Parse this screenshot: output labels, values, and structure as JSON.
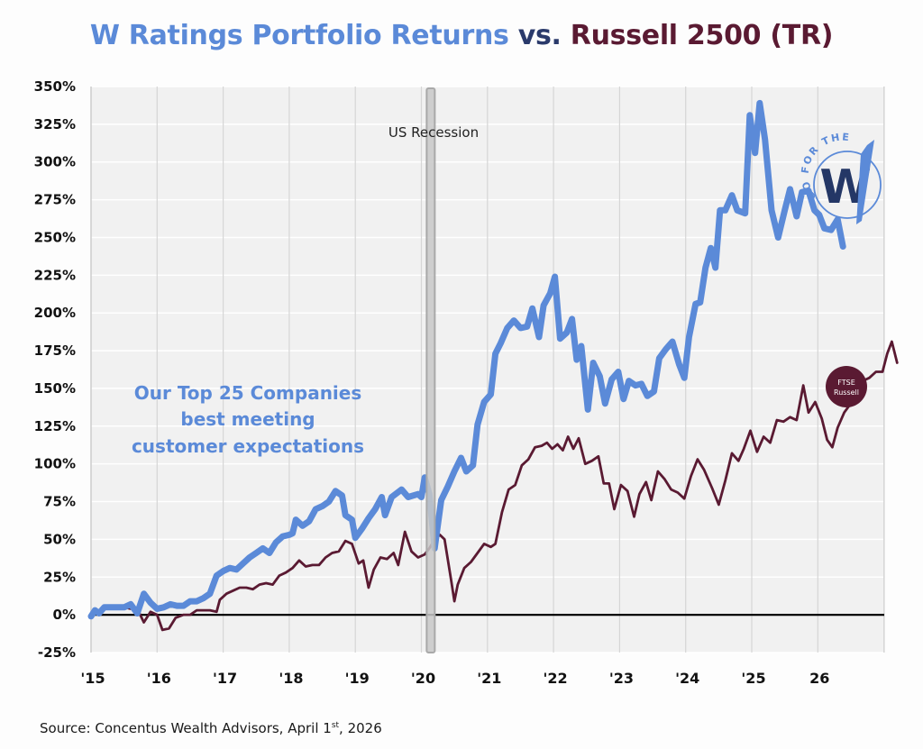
{
  "title": {
    "part1": "W Ratings Portfolio Returns",
    "part2": "vs.",
    "part3": "Russell 2500 (TR)",
    "colors": {
      "part1": "#5b8ad8",
      "part2": "#2a3a6b",
      "part3": "#5a1a32"
    }
  },
  "source": {
    "prefix": "Source: Concentus Wealth Advisors, April 1",
    "superscript": "st",
    "suffix": ", 2026"
  },
  "logos": {
    "w_badge": {
      "ring_text": "GO FOR THE",
      "letter": "W",
      "colors": {
        "ring": "#5b8ad8",
        "letter": "#243766"
      }
    },
    "ftse_badge": {
      "line1": "FTSE",
      "line2": "Russell",
      "color": "#5a1a32"
    }
  },
  "chart_data": {
    "type": "line",
    "title": "W Ratings Portfolio Returns vs. Russell 2500 (TR)",
    "xlabel": "",
    "ylabel": "",
    "x_range": [
      2015,
      2027
    ],
    "ylim": [
      -25,
      350
    ],
    "y_ticks": [
      -25,
      0,
      25,
      50,
      75,
      100,
      125,
      150,
      175,
      200,
      225,
      250,
      275,
      300,
      325,
      350
    ],
    "y_tick_labels": [
      "-25%",
      "0%",
      "25%",
      "50%",
      "75%",
      "100%",
      "125%",
      "150%",
      "175%",
      "200%",
      "225%",
      "250%",
      "275%",
      "300%",
      "325%",
      "350%"
    ],
    "x_ticks": [
      2015,
      2016,
      2017,
      2018,
      2019,
      2020,
      2021,
      2022,
      2023,
      2024,
      2025,
      2026
    ],
    "x_tick_labels": [
      "'15",
      "'16",
      "'17",
      "'18",
      "'19",
      "'20",
      "'21",
      "'22",
      "'23",
      "'24",
      "'25",
      "26"
    ],
    "grid": true,
    "zero_line": true,
    "annotations": [
      {
        "text_lines": [
          "Our Top 25 Companies",
          "best meeting",
          "customer expectations"
        ],
        "color": "#5b8ad8",
        "anchor_x": 2017.25,
        "anchor_y": 142
      },
      {
        "text": "US Recession",
        "anchor_x": 2020.1,
        "anchor_y": 318
      }
    ],
    "shaded_regions": [
      {
        "label": "US Recession",
        "x_start": 2020.08,
        "x_end": 2020.2
      }
    ],
    "series": [
      {
        "name": "W Ratings Portfolio",
        "color": "#5b8ad8",
        "points": [
          [
            2015.0,
            -1
          ],
          [
            2015.06,
            3
          ],
          [
            2015.12,
            1
          ],
          [
            2015.2,
            5
          ],
          [
            2015.3,
            5
          ],
          [
            2015.4,
            5
          ],
          [
            2015.5,
            5
          ],
          [
            2015.6,
            7
          ],
          [
            2015.7,
            1
          ],
          [
            2015.8,
            14
          ],
          [
            2015.9,
            8
          ],
          [
            2016.0,
            4
          ],
          [
            2016.1,
            5
          ],
          [
            2016.2,
            7
          ],
          [
            2016.3,
            6
          ],
          [
            2016.4,
            6
          ],
          [
            2016.5,
            9
          ],
          [
            2016.6,
            9
          ],
          [
            2016.7,
            11
          ],
          [
            2016.8,
            14
          ],
          [
            2016.9,
            26
          ],
          [
            2017.0,
            29
          ],
          [
            2017.1,
            31
          ],
          [
            2017.2,
            30
          ],
          [
            2017.3,
            34
          ],
          [
            2017.4,
            38
          ],
          [
            2017.5,
            41
          ],
          [
            2017.6,
            44
          ],
          [
            2017.7,
            41
          ],
          [
            2017.8,
            48
          ],
          [
            2017.9,
            52
          ],
          [
            2018.0,
            53
          ],
          [
            2018.05,
            54
          ],
          [
            2018.1,
            63
          ],
          [
            2018.2,
            59
          ],
          [
            2018.3,
            62
          ],
          [
            2018.4,
            70
          ],
          [
            2018.5,
            72
          ],
          [
            2018.6,
            75
          ],
          [
            2018.7,
            82
          ],
          [
            2018.8,
            79
          ],
          [
            2018.85,
            66
          ],
          [
            2018.95,
            63
          ],
          [
            2019.0,
            51
          ],
          [
            2019.1,
            57
          ],
          [
            2019.2,
            64
          ],
          [
            2019.3,
            70
          ],
          [
            2019.4,
            78
          ],
          [
            2019.45,
            66
          ],
          [
            2019.55,
            78
          ],
          [
            2019.7,
            83
          ],
          [
            2019.8,
            78
          ],
          [
            2019.95,
            80
          ],
          [
            2020.0,
            78
          ],
          [
            2020.05,
            91
          ],
          [
            2020.12,
            80
          ],
          [
            2020.2,
            44
          ],
          [
            2020.3,
            76
          ],
          [
            2020.4,
            85
          ],
          [
            2020.5,
            95
          ],
          [
            2020.6,
            104
          ],
          [
            2020.68,
            95
          ],
          [
            2020.78,
            99
          ],
          [
            2020.85,
            126
          ],
          [
            2020.95,
            141
          ],
          [
            2021.05,
            146
          ],
          [
            2021.12,
            173
          ],
          [
            2021.2,
            180
          ],
          [
            2021.3,
            190
          ],
          [
            2021.4,
            195
          ],
          [
            2021.5,
            190
          ],
          [
            2021.6,
            191
          ],
          [
            2021.68,
            203
          ],
          [
            2021.78,
            184
          ],
          [
            2021.85,
            205
          ],
          [
            2021.95,
            213
          ],
          [
            2022.02,
            224
          ],
          [
            2022.1,
            183
          ],
          [
            2022.2,
            187
          ],
          [
            2022.28,
            196
          ],
          [
            2022.35,
            169
          ],
          [
            2022.42,
            178
          ],
          [
            2022.52,
            136
          ],
          [
            2022.6,
            167
          ],
          [
            2022.7,
            158
          ],
          [
            2022.78,
            140
          ],
          [
            2022.88,
            156
          ],
          [
            2022.98,
            161
          ],
          [
            2023.06,
            143
          ],
          [
            2023.14,
            155
          ],
          [
            2023.24,
            152
          ],
          [
            2023.33,
            153
          ],
          [
            2023.42,
            145
          ],
          [
            2023.52,
            148
          ],
          [
            2023.6,
            170
          ],
          [
            2023.7,
            176
          ],
          [
            2023.8,
            181
          ],
          [
            2023.9,
            166
          ],
          [
            2023.98,
            157
          ],
          [
            2024.05,
            184
          ],
          [
            2024.15,
            206
          ],
          [
            2024.22,
            207
          ],
          [
            2024.3,
            230
          ],
          [
            2024.38,
            243
          ],
          [
            2024.45,
            230
          ],
          [
            2024.52,
            268
          ],
          [
            2024.6,
            268
          ],
          [
            2024.7,
            278
          ],
          [
            2024.78,
            268
          ],
          [
            2024.9,
            266
          ],
          [
            2024.97,
            331
          ],
          [
            2025.05,
            306
          ],
          [
            2025.12,
            339
          ],
          [
            2025.2,
            315
          ],
          [
            2025.3,
            268
          ],
          [
            2025.4,
            250
          ],
          [
            2025.5,
            268
          ],
          [
            2025.58,
            282
          ],
          [
            2025.68,
            264
          ],
          [
            2025.76,
            280
          ],
          [
            2025.86,
            281
          ],
          [
            2025.95,
            268
          ],
          [
            2026.02,
            265
          ],
          [
            2026.1,
            256
          ],
          [
            2026.2,
            255
          ],
          [
            2026.3,
            262
          ],
          [
            2026.38,
            244
          ]
        ]
      },
      {
        "name": "Russell 2500 (TR)",
        "color": "#5a1a32",
        "points": [
          [
            2015.0,
            -1
          ],
          [
            2015.06,
            2
          ],
          [
            2015.15,
            1
          ],
          [
            2015.25,
            6
          ],
          [
            2015.4,
            5
          ],
          [
            2015.5,
            5
          ],
          [
            2015.6,
            4
          ],
          [
            2015.7,
            4
          ],
          [
            2015.8,
            -5
          ],
          [
            2015.9,
            2
          ],
          [
            2016.0,
            0
          ],
          [
            2016.08,
            -10
          ],
          [
            2016.18,
            -9
          ],
          [
            2016.28,
            -2
          ],
          [
            2016.4,
            0
          ],
          [
            2016.5,
            0
          ],
          [
            2016.6,
            3
          ],
          [
            2016.7,
            3
          ],
          [
            2016.8,
            3
          ],
          [
            2016.9,
            2
          ],
          [
            2016.95,
            10
          ],
          [
            2017.05,
            14
          ],
          [
            2017.15,
            16
          ],
          [
            2017.25,
            18
          ],
          [
            2017.35,
            18
          ],
          [
            2017.45,
            17
          ],
          [
            2017.55,
            20
          ],
          [
            2017.65,
            21
          ],
          [
            2017.75,
            20
          ],
          [
            2017.85,
            26
          ],
          [
            2017.95,
            28
          ],
          [
            2018.05,
            31
          ],
          [
            2018.15,
            36
          ],
          [
            2018.25,
            32
          ],
          [
            2018.35,
            33
          ],
          [
            2018.45,
            33
          ],
          [
            2018.55,
            38
          ],
          [
            2018.65,
            41
          ],
          [
            2018.75,
            42
          ],
          [
            2018.85,
            49
          ],
          [
            2018.95,
            47
          ],
          [
            2019.05,
            34
          ],
          [
            2019.12,
            36
          ],
          [
            2019.2,
            18
          ],
          [
            2019.28,
            30
          ],
          [
            2019.38,
            38
          ],
          [
            2019.48,
            37
          ],
          [
            2019.58,
            41
          ],
          [
            2019.65,
            33
          ],
          [
            2019.75,
            55
          ],
          [
            2019.85,
            42
          ],
          [
            2019.95,
            38
          ],
          [
            2020.05,
            40
          ],
          [
            2020.12,
            44
          ],
          [
            2020.2,
            50
          ],
          [
            2020.28,
            53
          ],
          [
            2020.35,
            50
          ],
          [
            2020.45,
            23
          ],
          [
            2020.5,
            9
          ],
          [
            2020.55,
            20
          ],
          [
            2020.65,
            31
          ],
          [
            2020.75,
            35
          ],
          [
            2020.85,
            41
          ],
          [
            2020.95,
            47
          ],
          [
            2021.05,
            45
          ],
          [
            2021.12,
            47
          ],
          [
            2021.22,
            68
          ],
          [
            2021.32,
            83
          ],
          [
            2021.42,
            86
          ],
          [
            2021.52,
            99
          ],
          [
            2021.62,
            103
          ],
          [
            2021.72,
            111
          ],
          [
            2021.82,
            112
          ],
          [
            2021.9,
            114
          ],
          [
            2021.98,
            110
          ],
          [
            2022.06,
            113
          ],
          [
            2022.14,
            109
          ],
          [
            2022.22,
            118
          ],
          [
            2022.3,
            110
          ],
          [
            2022.38,
            117
          ],
          [
            2022.48,
            100
          ],
          [
            2022.58,
            102
          ],
          [
            2022.68,
            105
          ],
          [
            2022.76,
            87
          ],
          [
            2022.84,
            87
          ],
          [
            2022.92,
            70
          ],
          [
            2023.02,
            86
          ],
          [
            2023.12,
            82
          ],
          [
            2023.22,
            65
          ],
          [
            2023.3,
            80
          ],
          [
            2023.4,
            88
          ],
          [
            2023.48,
            76
          ],
          [
            2023.58,
            95
          ],
          [
            2023.68,
            90
          ],
          [
            2023.78,
            83
          ],
          [
            2023.88,
            81
          ],
          [
            2023.98,
            77
          ],
          [
            2024.08,
            92
          ],
          [
            2024.18,
            103
          ],
          [
            2024.28,
            96
          ],
          [
            2024.4,
            84
          ],
          [
            2024.5,
            73
          ],
          [
            2024.6,
            89
          ],
          [
            2024.7,
            107
          ],
          [
            2024.8,
            102
          ],
          [
            2024.88,
            110
          ],
          [
            2024.98,
            122
          ],
          [
            2025.08,
            108
          ],
          [
            2025.18,
            118
          ],
          [
            2025.28,
            114
          ],
          [
            2025.38,
            129
          ],
          [
            2025.48,
            128
          ],
          [
            2025.58,
            131
          ],
          [
            2025.68,
            129
          ],
          [
            2025.78,
            152
          ],
          [
            2025.86,
            134
          ],
          [
            2025.96,
            141
          ],
          [
            2026.06,
            130
          ],
          [
            2026.14,
            116
          ],
          [
            2026.22,
            111
          ],
          [
            2026.3,
            124
          ],
          [
            2026.4,
            134
          ],
          [
            2026.5,
            140
          ],
          [
            2026.58,
            152
          ],
          [
            2026.68,
            155
          ],
          [
            2026.78,
            157
          ],
          [
            2026.88,
            161
          ],
          [
            2026.98,
            161
          ],
          [
            2027.05,
            173
          ],
          [
            2027.12,
            181
          ],
          [
            2027.2,
            167
          ]
        ]
      }
    ]
  }
}
